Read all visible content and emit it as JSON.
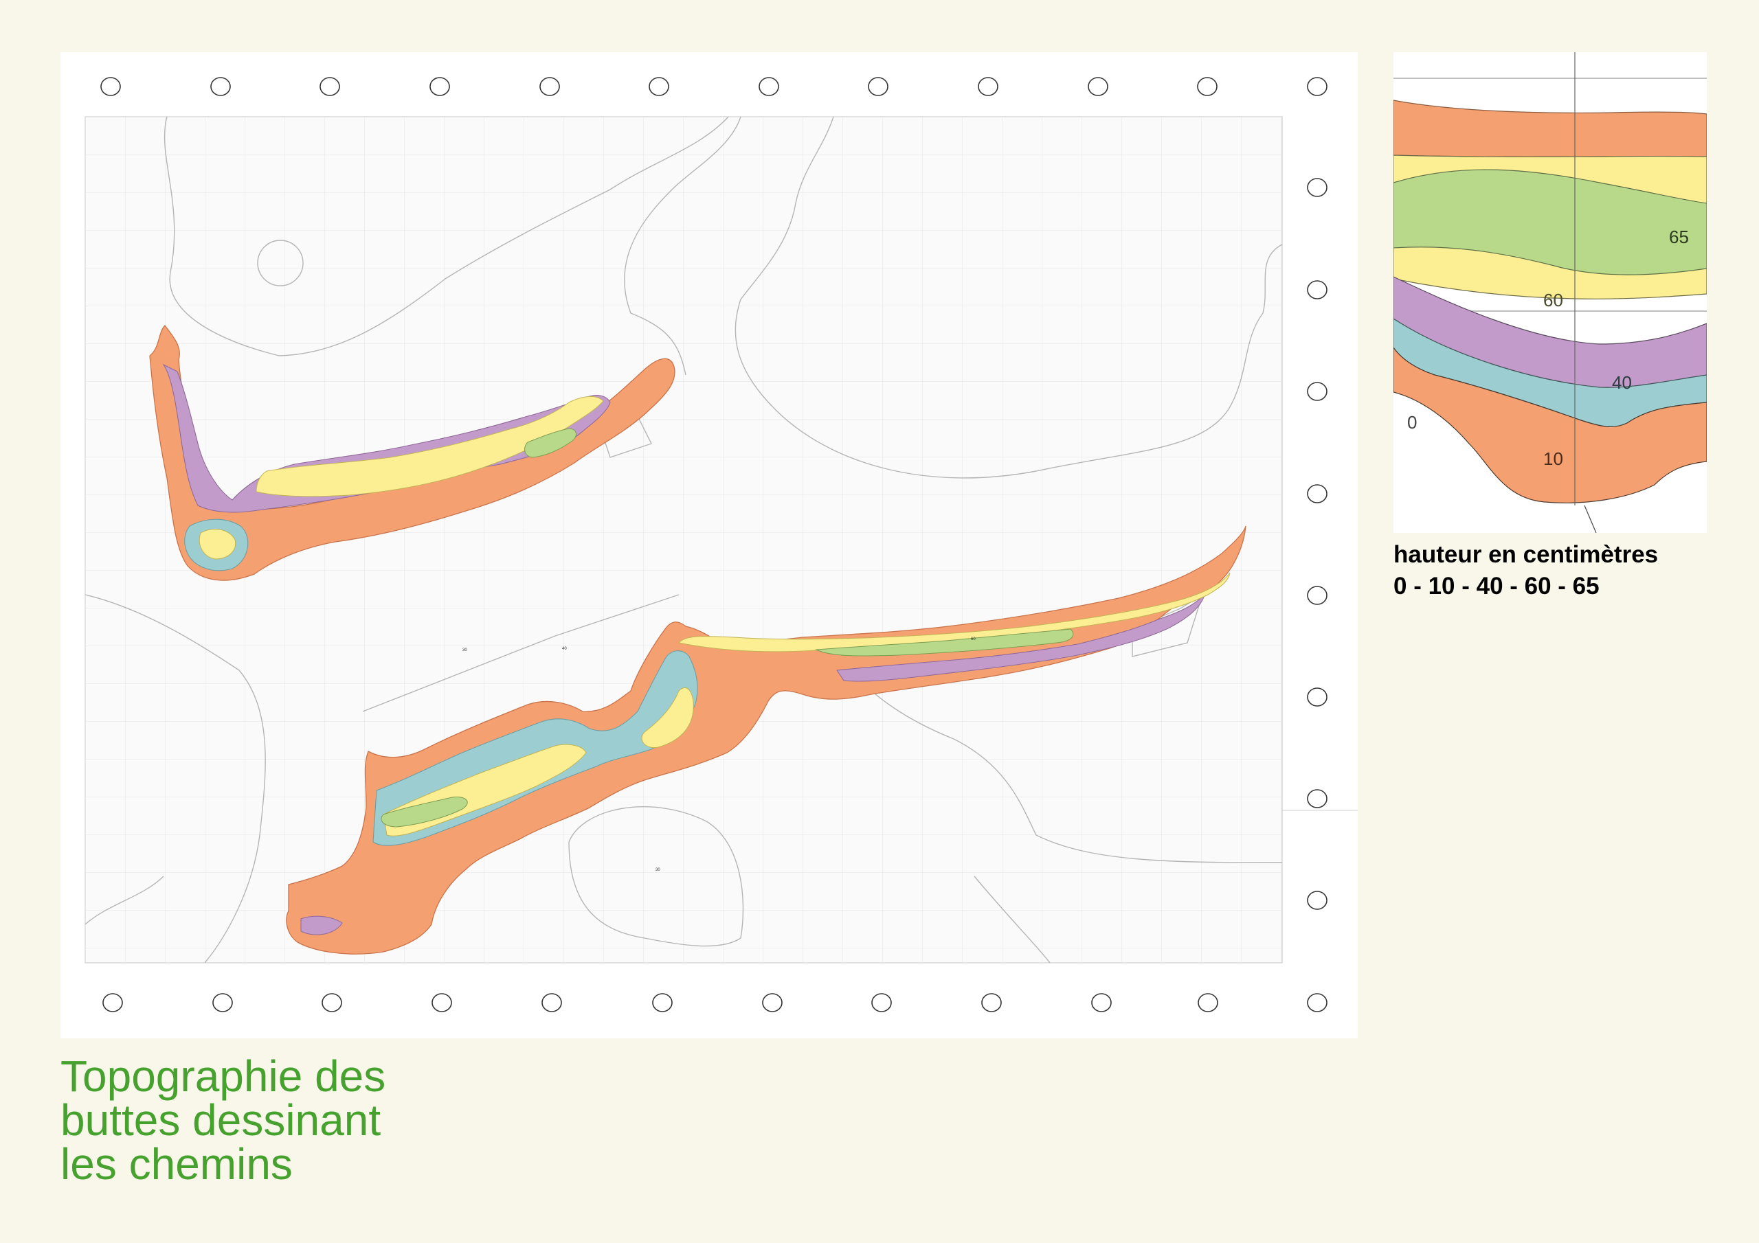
{
  "title_lines": [
    "Topographie des",
    "buttes dessinant",
    "les chemins"
  ],
  "legend": {
    "caption_line1": "hauteur en centimètres",
    "caption_line2": "0 - 10 - 40 - 60 - 65",
    "contour_labels": [
      "0",
      "10",
      "40",
      "60",
      "65"
    ]
  },
  "elevation_levels_cm": [
    0,
    10,
    40,
    60,
    65
  ],
  "colors": {
    "background": "#f8f7ea",
    "sheet": "#ffffff",
    "title": "#46a12f",
    "level_0_10": "#f4a070",
    "level_10_40": "#9ccdd1",
    "level_40_60": "#c39bcb",
    "level_60_65": "#fbee93",
    "level_65": "#b8d88a"
  }
}
